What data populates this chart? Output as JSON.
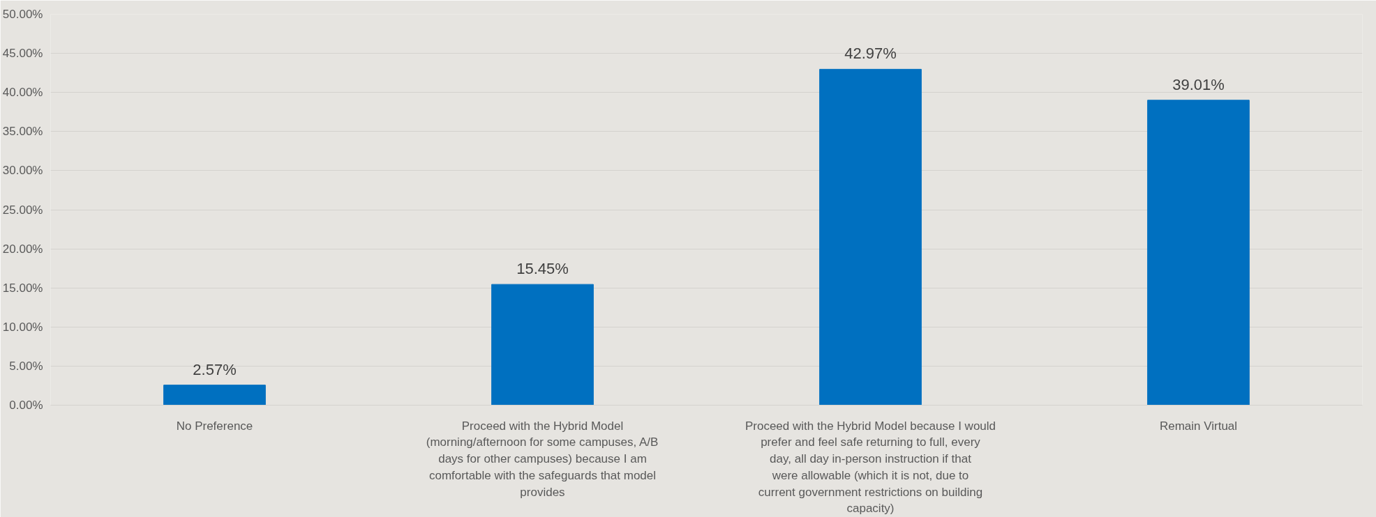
{
  "chart_data": {
    "type": "bar",
    "categories": [
      "No Preference",
      "Proceed with the Hybrid Model (morning/afternoon for some campuses, A/B days for other campuses) because I am comfortable with the safeguards that model provides",
      "Proceed with the Hybrid Model because I would prefer and feel safe returning to full, every day, all day in-person instruction if that were allowable (which it is not, due to current government restrictions on building capacity)",
      "Remain Virtual"
    ],
    "values": [
      2.57,
      15.45,
      42.97,
      39.01
    ],
    "color": "#0070c0",
    "ylim": [
      0,
      50
    ],
    "yticks": [
      {
        "value": 0,
        "label": "0.00%"
      },
      {
        "value": 5,
        "label": "5.00%"
      },
      {
        "value": 10,
        "label": "10.00%"
      },
      {
        "value": 15,
        "label": "15.00%"
      },
      {
        "value": 20,
        "label": "20.00%"
      },
      {
        "value": 25,
        "label": "25.00%"
      },
      {
        "value": 30,
        "label": "30.00%"
      },
      {
        "value": 35,
        "label": "35.00%"
      },
      {
        "value": 40,
        "label": "40.00%"
      },
      {
        "value": 45,
        "label": "45.00%"
      },
      {
        "value": 50,
        "label": "50.00%"
      }
    ],
    "value_labels": [
      "2.57%",
      "15.45%",
      "42.97%",
      "39.01%"
    ],
    "grid": "y"
  }
}
